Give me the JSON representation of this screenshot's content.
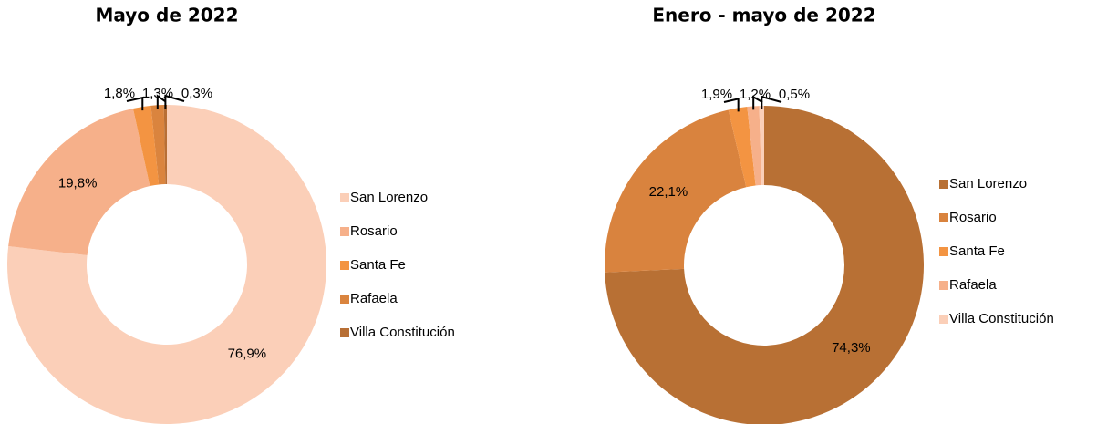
{
  "chart_data": [
    {
      "type": "donut",
      "title": "Mayo de 2022",
      "categories": [
        "San Lorenzo",
        "Rosario",
        "Santa Fe",
        "Rafaela",
        "Villa Constitución"
      ],
      "values": [
        76.9,
        19.8,
        1.8,
        1.3,
        0.3
      ],
      "value_labels": [
        "76,9%",
        "19,8%",
        "1,8%",
        "1,3%",
        "0,3%"
      ],
      "colors": [
        "#fbcfb8",
        "#f6b08a",
        "#f39442",
        "#da843e",
        "#b86f35"
      ],
      "legend": "right"
    },
    {
      "type": "donut",
      "title": "Enero - mayo de 2022",
      "categories": [
        "San Lorenzo",
        "Rosario",
        "Santa Fe",
        "Rafaela",
        "Villa Constitución"
      ],
      "values": [
        74.3,
        22.1,
        1.9,
        1.2,
        0.5
      ],
      "value_labels": [
        "74,3%",
        "22,1%",
        "1,9%",
        "1,2%",
        "0,5%"
      ],
      "colors": [
        "#b87034",
        "#d9833e",
        "#f39442",
        "#f6b08a",
        "#fbcfb8"
      ],
      "legend": "right"
    }
  ]
}
